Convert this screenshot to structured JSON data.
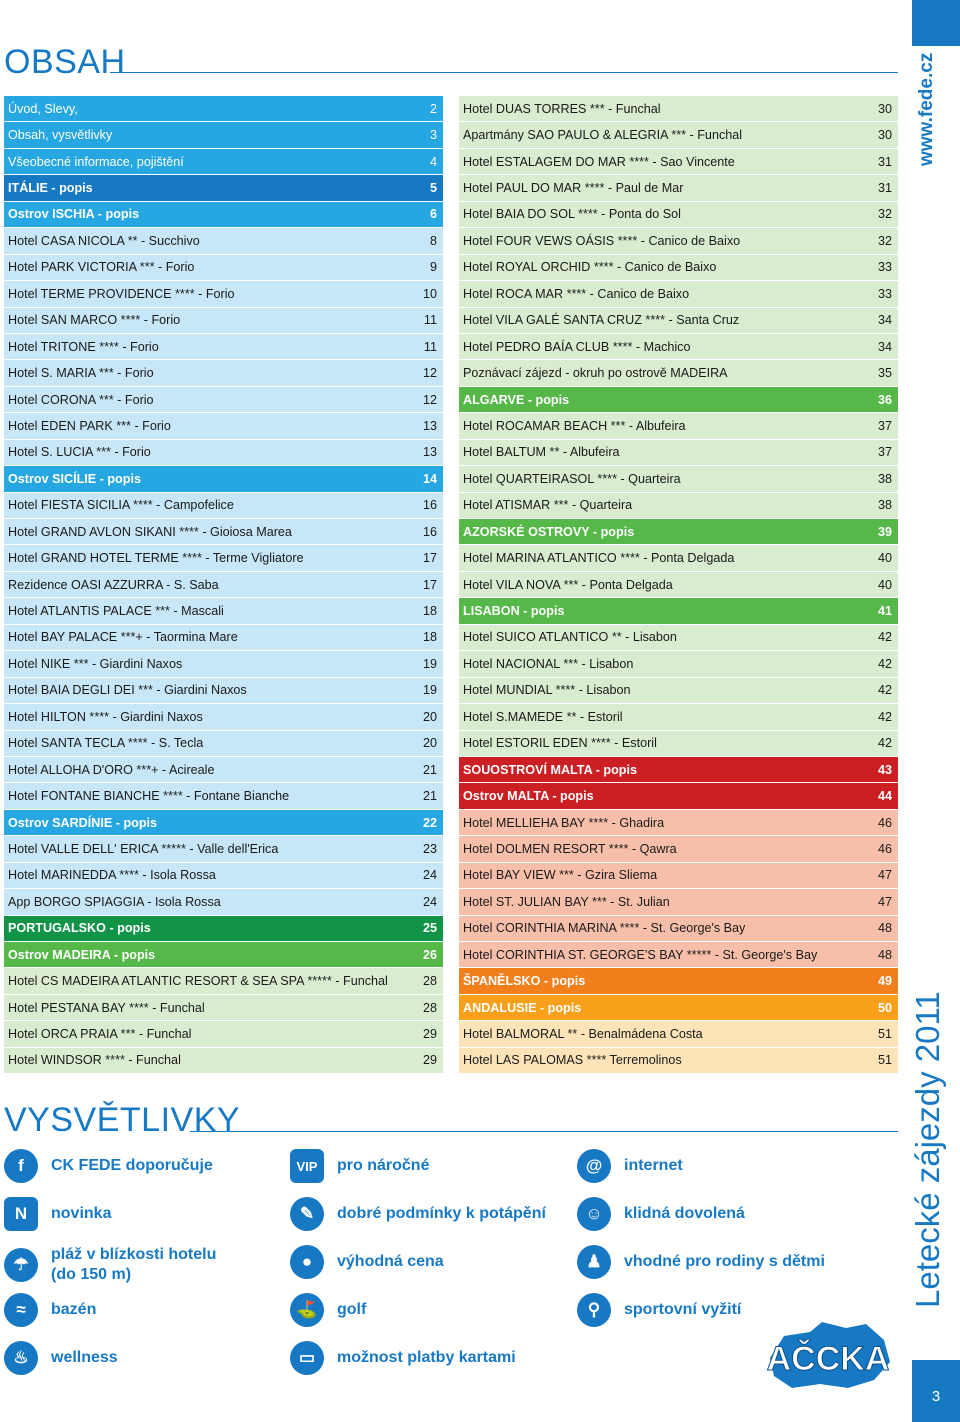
{
  "titles": {
    "toc": "OBSAH",
    "legend": "VYSVĚTLIVKY"
  },
  "colors": {
    "blue_dark": "#1779c4",
    "blue_light": "#c7e6f7",
    "blue_head": "#27a7e1",
    "green_dark": "#119447",
    "green_head": "#55b848",
    "green_light": "#d9ecd0",
    "red_dark": "#cc1f24",
    "red_light": "#f7bfaa",
    "orange_dark": "#f07f1c",
    "orange_head": "#f9a01b",
    "orange_light": "#fde3b8"
  },
  "toc_left": [
    {
      "text": "Úvod, Slevy,",
      "page": "2",
      "style": "h1"
    },
    {
      "text": "Obsah, vysvětlivky",
      "page": "3",
      "style": "h1"
    },
    {
      "text": "Všeobecné informace, pojištění",
      "page": "4",
      "style": "h1"
    },
    {
      "text": "ITÁLIE - popis",
      "page": "5",
      "style": "hdark"
    },
    {
      "text": "Ostrov ISCHIA - popis",
      "page": "6",
      "style": "hhead"
    },
    {
      "text": "Hotel CASA NICOLA ** - Succhivo",
      "page": "8",
      "style": "l"
    },
    {
      "text": "Hotel PARK VICTORIA *** - Forio",
      "page": "9",
      "style": "l"
    },
    {
      "text": "Hotel TERME PROVIDENCE **** - Forio",
      "page": "10",
      "style": "l"
    },
    {
      "text": "Hotel SAN MARCO **** - Forio",
      "page": "11",
      "style": "l"
    },
    {
      "text": "Hotel TRITONE **** - Forio",
      "page": "11",
      "style": "l"
    },
    {
      "text": "Hotel S. MARIA *** - Forio",
      "page": "12",
      "style": "l"
    },
    {
      "text": "Hotel CORONA *** - Forio",
      "page": "12",
      "style": "l"
    },
    {
      "text": "Hotel EDEN PARK *** - Forio",
      "page": "13",
      "style": "l"
    },
    {
      "text": "Hotel S. LUCIA *** - Forio",
      "page": "13",
      "style": "l"
    },
    {
      "text": "Ostrov SICÍLIE - popis",
      "page": "14",
      "style": "hhead"
    },
    {
      "text": "Hotel FIESTA SICILIA **** - Campofelice",
      "page": "16",
      "style": "l"
    },
    {
      "text": "Hotel GRAND AVLON SIKANI **** - Gioiosa Marea",
      "page": "16",
      "style": "l"
    },
    {
      "text": "Hotel GRAND HOTEL TERME **** - Terme Vigliatore",
      "page": "17",
      "style": "l"
    },
    {
      "text": "Rezidence OASI AZZURRA - S. Saba",
      "page": "17",
      "style": "l"
    },
    {
      "text": "Hotel ATLANTIS PALACE *** - Mascali",
      "page": "18",
      "style": "l"
    },
    {
      "text": "Hotel BAY PALACE ***+ - Taormina Mare",
      "page": "18",
      "style": "l"
    },
    {
      "text": "Hotel NIKE *** - Giardini Naxos",
      "page": "19",
      "style": "l"
    },
    {
      "text": "Hotel BAIA DEGLI DEI *** - Giardini Naxos",
      "page": "19",
      "style": "l"
    },
    {
      "text": "Hotel HILTON **** - Giardini Naxos",
      "page": "20",
      "style": "l"
    },
    {
      "text": "Hotel SANTA TECLA **** - S. Tecla",
      "page": "20",
      "style": "l"
    },
    {
      "text": "Hotel ALLOHA D'ORO ***+ - Acireale",
      "page": "21",
      "style": "l"
    },
    {
      "text": "Hotel FONTANE BIANCHE **** - Fontane Bianche",
      "page": "21",
      "style": "l"
    },
    {
      "text": "Ostrov SARDÍNIE - popis",
      "page": "22",
      "style": "hhead"
    },
    {
      "text": "Hotel VALLE DELL' ERICA ***** - Valle dell'Erica",
      "page": "23",
      "style": "l"
    },
    {
      "text": "Hotel MARINEDDA **** - Isola Rossa",
      "page": "24",
      "style": "l"
    },
    {
      "text": "App BORGO SPIAGGIA - Isola Rossa",
      "page": "24",
      "style": "l"
    },
    {
      "text": "PORTUGALSKO - popis",
      "page": "25",
      "style": "gdark"
    },
    {
      "text": "Ostrov MADEIRA - popis",
      "page": "26",
      "style": "ghead"
    },
    {
      "text": "Hotel CS MADEIRA ATLANTIC RESORT & SEA SPA ***** - Funchal",
      "page": "28",
      "style": "g"
    },
    {
      "text": "Hotel PESTANA BAY **** - Funchal",
      "page": "28",
      "style": "g"
    },
    {
      "text": "Hotel ORCA PRAIA *** - Funchal",
      "page": "29",
      "style": "g"
    },
    {
      "text": "Hotel WINDSOR **** - Funchal",
      "page": "29",
      "style": "g"
    }
  ],
  "toc_right": [
    {
      "text": "Hotel DUAS TORRES *** - Funchal",
      "page": "30",
      "style": "g"
    },
    {
      "text": "Apartmány SAO PAULO & ALEGRIA *** - Funchal",
      "page": "30",
      "style": "g"
    },
    {
      "text": "Hotel ESTALAGEM DO MAR **** - Sao Vincente",
      "page": "31",
      "style": "g"
    },
    {
      "text": "Hotel PAUL DO MAR **** - Paul de Mar",
      "page": "31",
      "style": "g"
    },
    {
      "text": "Hotel BAIA DO SOL **** - Ponta do Sol",
      "page": "32",
      "style": "g"
    },
    {
      "text": "Hotel FOUR VEWS OÁSIS **** - Canico de Baixo",
      "page": "32",
      "style": "g"
    },
    {
      "text": "Hotel ROYAL ORCHID **** - Canico de Baixo",
      "page": "33",
      "style": "g"
    },
    {
      "text": "Hotel ROCA MAR **** - Canico de Baixo",
      "page": "33",
      "style": "g"
    },
    {
      "text": "Hotel VILA GALÉ SANTA CRUZ **** - Santa Cruz",
      "page": "34",
      "style": "g"
    },
    {
      "text": "Hotel PEDRO BAÍA CLUB **** - Machico",
      "page": "34",
      "style": "g"
    },
    {
      "text": "Poznávací zájezd - okruh po ostrově MADEIRA",
      "page": "35",
      "style": "g"
    },
    {
      "text": "ALGARVE - popis",
      "page": "36",
      "style": "ghead"
    },
    {
      "text": "Hotel ROCAMAR BEACH  *** - Albufeira",
      "page": "37",
      "style": "g"
    },
    {
      "text": "Hotel BALTUM  ** - Albufeira",
      "page": "37",
      "style": "g"
    },
    {
      "text": "Hotel QUARTEIRASOL **** - Quarteira",
      "page": "38",
      "style": "g"
    },
    {
      "text": "Hotel ATISMAR  *** - Quarteira",
      "page": "38",
      "style": "g"
    },
    {
      "text": "AZORSKÉ OSTROVY - popis",
      "page": "39",
      "style": "ghead"
    },
    {
      "text": "Hotel MARINA ATLANTICO **** - Ponta Delgada",
      "page": "40",
      "style": "g"
    },
    {
      "text": "Hotel VILA NOVA *** - Ponta Delgada",
      "page": "40",
      "style": "g"
    },
    {
      "text": "LISABON - popis",
      "page": "41",
      "style": "ghead"
    },
    {
      "text": "Hotel SUICO ATLANTICO ** - Lisabon",
      "page": "42",
      "style": "g"
    },
    {
      "text": "Hotel NACIONAL *** - Lisabon",
      "page": "42",
      "style": "g"
    },
    {
      "text": "Hotel MUNDIAL **** - Lisabon",
      "page": "42",
      "style": "g"
    },
    {
      "text": "Hotel S.MAMEDE ** - Estoril",
      "page": "42",
      "style": "g"
    },
    {
      "text": "Hotel ESTORIL  EDEN **** - Estoril",
      "page": "42",
      "style": "g"
    },
    {
      "text": "SOUOSTROVÍ MALTA - popis",
      "page": "43",
      "style": "rdark"
    },
    {
      "text": "Ostrov MALTA - popis",
      "page": "44",
      "style": "rdark"
    },
    {
      "text": "Hotel MELLIEHA BAY **** - Ghadira",
      "page": "46",
      "style": "r"
    },
    {
      "text": "Hotel DOLMEN RESORT **** - Qawra",
      "page": "46",
      "style": "r"
    },
    {
      "text": "Hotel BAY VIEW *** - Gzira Sliema",
      "page": "47",
      "style": "r"
    },
    {
      "text": "Hotel ST. JULIAN BAY *** - St. Julian",
      "page": "47",
      "style": "r"
    },
    {
      "text": "Hotel CORINTHIA MARINA **** - St. George's Bay",
      "page": "48",
      "style": "r"
    },
    {
      "text": "Hotel CORINTHIA ST. GEORGE'S BAY ***** - St. George's Bay",
      "page": "48",
      "style": "r"
    },
    {
      "text": "ŠPANĚLSKO - popis",
      "page": "49",
      "style": "odark"
    },
    {
      "text": "ANDALUSIE - popis",
      "page": "50",
      "style": "ohead"
    },
    {
      "text": "Hotel BALMORAL ** - Benalmádena Costa",
      "page": "51",
      "style": "o"
    },
    {
      "text": "Hotel LAS PALOMAS  **** Terremolinos",
      "page": "51",
      "style": "o"
    }
  ],
  "legend": [
    {
      "icon": "ck-fede-icon",
      "glyph": "f",
      "label": "CK FEDE doporučuje",
      "col": 0,
      "row": 0
    },
    {
      "icon": "novinka-icon",
      "glyph": "N",
      "label": "novinka",
      "col": 0,
      "row": 1
    },
    {
      "icon": "beach-icon",
      "glyph": "☂",
      "label": "pláž v blízkosti hotelu (do 150 m)",
      "col": 0,
      "row": 2
    },
    {
      "icon": "pool-icon",
      "glyph": "≈",
      "label": "bazén",
      "col": 0,
      "row": 3
    },
    {
      "icon": "wellness-icon",
      "glyph": "♨",
      "label": "wellness",
      "col": 0,
      "row": 4
    },
    {
      "icon": "vip-icon",
      "glyph": "VIP",
      "label": "pro náročné",
      "col": 1,
      "row": 0
    },
    {
      "icon": "diving-icon",
      "glyph": "✎",
      "label": "dobré podmínky k potápění",
      "col": 1,
      "row": 1
    },
    {
      "icon": "piggy-bank-icon",
      "glyph": "●",
      "label": "výhodná cena",
      "col": 1,
      "row": 2
    },
    {
      "icon": "golf-icon",
      "glyph": "⛳",
      "label": "golf",
      "col": 1,
      "row": 3
    },
    {
      "icon": "card-icon",
      "glyph": "▭",
      "label": "možnost platby kartami",
      "col": 1,
      "row": 4
    },
    {
      "icon": "internet-icon",
      "glyph": "@",
      "label": "internet",
      "col": 2,
      "row": 0
    },
    {
      "icon": "smile-icon",
      "glyph": "☺",
      "label": "klidná dovolená",
      "col": 2,
      "row": 1
    },
    {
      "icon": "family-icon",
      "glyph": "♟",
      "label": "vhodné pro rodiny s dětmi",
      "col": 2,
      "row": 2
    },
    {
      "icon": "sport-icon",
      "glyph": "⚲",
      "label": "sportovní vyžití",
      "col": 2,
      "row": 3
    }
  ],
  "sidebar": {
    "url": "www.fede.cz",
    "catalog": "Letecké zájezdy 2011",
    "page_number": "3"
  },
  "logo": {
    "text": "AČCKA"
  }
}
